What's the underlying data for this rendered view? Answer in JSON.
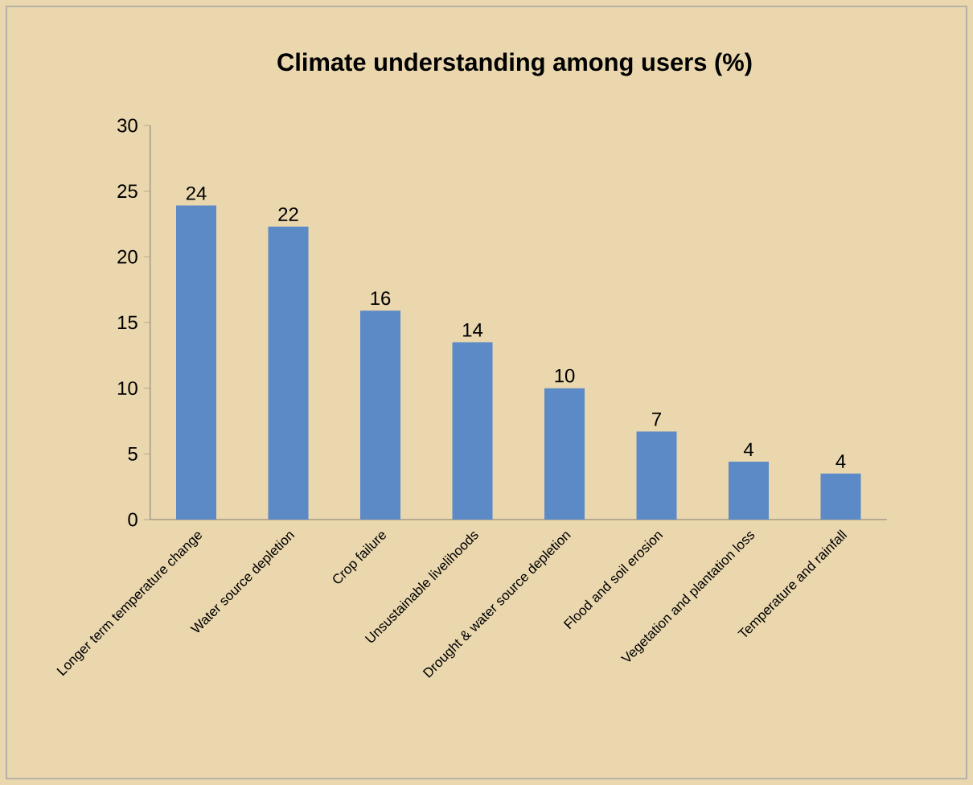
{
  "chart_data": {
    "type": "bar",
    "title": "Climate understanding among users (%)",
    "categories": [
      "Longer term temperature change",
      "Water source depletion",
      "Crop failure",
      "Unsustainable livelihoods",
      "Drought & water source depletion",
      "Flood and soil erosion",
      "Vegetation and plantation loss",
      "Temperature and rainfall"
    ],
    "values": [
      23.9,
      22.3,
      15.9,
      13.5,
      10.0,
      6.7,
      4.4,
      3.5
    ],
    "value_labels": [
      "24",
      "22",
      "16",
      "14",
      "10",
      "7",
      "4",
      "4"
    ],
    "color": "#5b8ac6",
    "ylim": [
      0,
      30
    ],
    "yticks": [
      0,
      5,
      10,
      15,
      20,
      25,
      30
    ]
  }
}
